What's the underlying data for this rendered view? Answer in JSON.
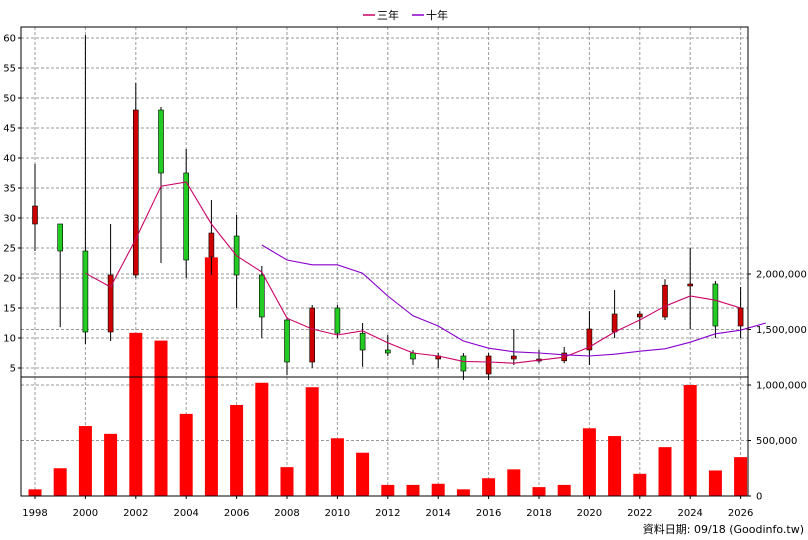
{
  "chart_data": {
    "type": "candlestick",
    "years": [
      1998,
      1999,
      2000,
      2001,
      2002,
      2003,
      2004,
      2005,
      2006,
      2007,
      2008,
      2009,
      2010,
      2011,
      2012,
      2013,
      2014,
      2015,
      2016,
      2017,
      2018,
      2019,
      2020,
      2021,
      2022,
      2023,
      2024,
      2025,
      2026
    ],
    "candles": [
      {
        "open": 29.0,
        "high": 39.0,
        "low": 24.5,
        "close": 32.0
      },
      {
        "open": 29.0,
        "high": 29.0,
        "low": 11.8,
        "close": 24.5
      },
      {
        "open": 24.5,
        "high": 60.5,
        "low": 9.0,
        "close": 11.0
      },
      {
        "open": 11.0,
        "high": 29.0,
        "low": 9.5,
        "close": 20.5
      },
      {
        "open": 20.5,
        "high": 52.5,
        "low": 20.0,
        "close": 48.0
      },
      {
        "open": 48.0,
        "high": 48.5,
        "low": 22.5,
        "close": 37.5
      },
      {
        "open": 37.5,
        "high": 41.5,
        "low": 20.0,
        "close": 23.0
      },
      {
        "open": 23.5,
        "high": 33.0,
        "low": 20.5,
        "close": 27.5
      },
      {
        "open": 27.0,
        "high": 30.5,
        "low": 15.0,
        "close": 20.5
      },
      {
        "open": 20.5,
        "high": 22.0,
        "low": 10.0,
        "close": 13.5
      },
      {
        "open": 13.0,
        "high": 13.5,
        "low": 3.8,
        "close": 6.0
      },
      {
        "open": 6.0,
        "high": 15.5,
        "low": 5.0,
        "close": 15.0
      },
      {
        "open": 15.0,
        "high": 15.5,
        "low": 10.0,
        "close": 10.8
      },
      {
        "open": 10.8,
        "high": 12.5,
        "low": 5.2,
        "close": 8.0
      },
      {
        "open": 8.0,
        "high": 10.5,
        "low": 7.0,
        "close": 7.5
      },
      {
        "open": 7.5,
        "high": 8.0,
        "low": 5.5,
        "close": 6.5
      },
      {
        "open": 6.5,
        "high": 7.5,
        "low": 5.0,
        "close": 7.0
      },
      {
        "open": 7.0,
        "high": 7.5,
        "low": 3.0,
        "close": 4.5
      },
      {
        "open": 4.0,
        "high": 7.5,
        "low": 3.0,
        "close": 7.0
      },
      {
        "open": 6.5,
        "high": 11.5,
        "low": 5.5,
        "close": 7.0
      },
      {
        "open": 6.3,
        "high": 8.0,
        "low": 5.8,
        "close": 6.5
      },
      {
        "open": 6.2,
        "high": 8.5,
        "low": 5.8,
        "close": 7.5
      },
      {
        "open": 8.0,
        "high": 14.5,
        "low": 5.5,
        "close": 11.5
      },
      {
        "open": 11.0,
        "high": 18.0,
        "low": 10.0,
        "close": 14.0
      },
      {
        "open": 13.5,
        "high": 14.5,
        "low": 11.5,
        "close": 14.0
      },
      {
        "open": 13.5,
        "high": 19.8,
        "low": 13.0,
        "close": 18.8
      },
      {
        "open": 18.8,
        "high": 25.0,
        "low": 11.5,
        "close": 19.0
      },
      {
        "open": 19.0,
        "high": 19.5,
        "low": 10.0,
        "close": 12.0
      },
      {
        "open": 12.0,
        "high": 18.5,
        "low": 10.0,
        "close": 15.0
      }
    ],
    "ma_series": [
      {
        "name": "三年",
        "color": "#cc0066",
        "start_year": 2000,
        "values": [
          20.8,
          18.5,
          26.5,
          35.3,
          36.0,
          29.0,
          23.7,
          21.0,
          13.3,
          11.5,
          10.5,
          11.2,
          9.2,
          7.5,
          7.0,
          6.1,
          6.0,
          5.8,
          6.3,
          6.8,
          8.5,
          11.0,
          13.0,
          15.3,
          17.0,
          16.3,
          15.0
        ]
      },
      {
        "name": "十年",
        "color": "#8800cc",
        "start_year": 2007,
        "values": [
          25.5,
          23.0,
          22.2,
          22.2,
          20.8,
          17.0,
          13.7,
          12.0,
          9.5,
          8.3,
          7.7,
          7.5,
          7.2,
          7.0,
          7.3,
          7.8,
          8.2,
          9.3,
          10.7,
          11.3,
          12.5
        ]
      }
    ],
    "volume": [
      60000,
      250000,
      630000,
      560000,
      1470000,
      1400000,
      740000,
      2150000,
      820000,
      1020000,
      260000,
      980000,
      520000,
      390000,
      100000,
      100000,
      110000,
      60000,
      160000,
      240000,
      80000,
      100000,
      610000,
      540000,
      200000,
      440000,
      1000000,
      230000,
      350000
    ],
    "price_axis": {
      "min": 0,
      "max": 61,
      "ticks": [
        5,
        10,
        15,
        20,
        25,
        30,
        35,
        40,
        45,
        50,
        55,
        60
      ]
    },
    "volume_axis": {
      "min": 0,
      "max": 2100000,
      "ticks": [
        0,
        500000,
        1000000,
        1500000,
        2000000
      ],
      "tick_labels": [
        "0",
        "500,000",
        "1,000,000",
        "1,500,000",
        "2,000,000"
      ]
    },
    "x_tick_labels": [
      "1998",
      "2000",
      "2002",
      "2004",
      "2006",
      "2008",
      "2010",
      "2012",
      "2014",
      "2016",
      "2018",
      "2020",
      "2022",
      "2024",
      "2026"
    ],
    "legend": [
      {
        "name": "三年",
        "color": "#cc0066"
      },
      {
        "name": "十年",
        "color": "#8800cc"
      }
    ],
    "grid": true,
    "legend_position": "top-center",
    "colors": {
      "up": "#cc0000",
      "down": "#22cc22",
      "volume": "#ff0000",
      "grid": "#9a9a9a"
    }
  },
  "credit": "資料日期: 09/18 (Goodinfo.tw)"
}
